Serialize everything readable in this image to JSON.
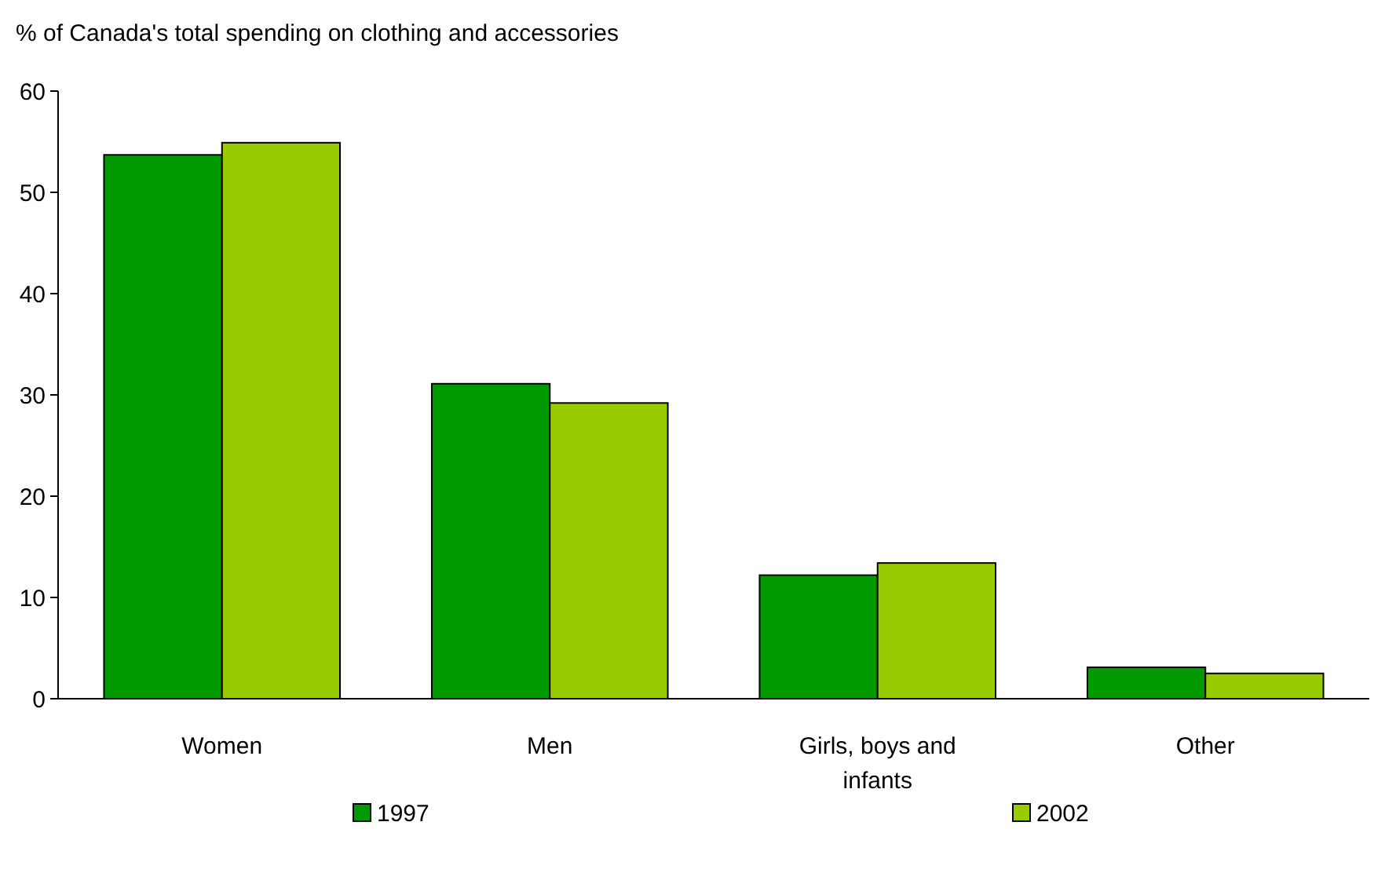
{
  "chart_data": {
    "type": "bar",
    "ylabel": "% of Canada's total spending on clothing and accessories",
    "categories": [
      "Women",
      "Men",
      "Girls, boys and infants",
      "Other"
    ],
    "series": [
      {
        "name": "1997",
        "color": "#009900",
        "values": [
          53.7,
          31.1,
          12.2,
          3.1
        ]
      },
      {
        "name": "2002",
        "color": "#99cc00",
        "values": [
          54.9,
          29.2,
          13.4,
          2.5
        ]
      }
    ],
    "ylim": [
      0,
      60
    ],
    "yticks": [
      0,
      10,
      20,
      30,
      40,
      50,
      60
    ],
    "grid": false,
    "legend": "bottom"
  }
}
